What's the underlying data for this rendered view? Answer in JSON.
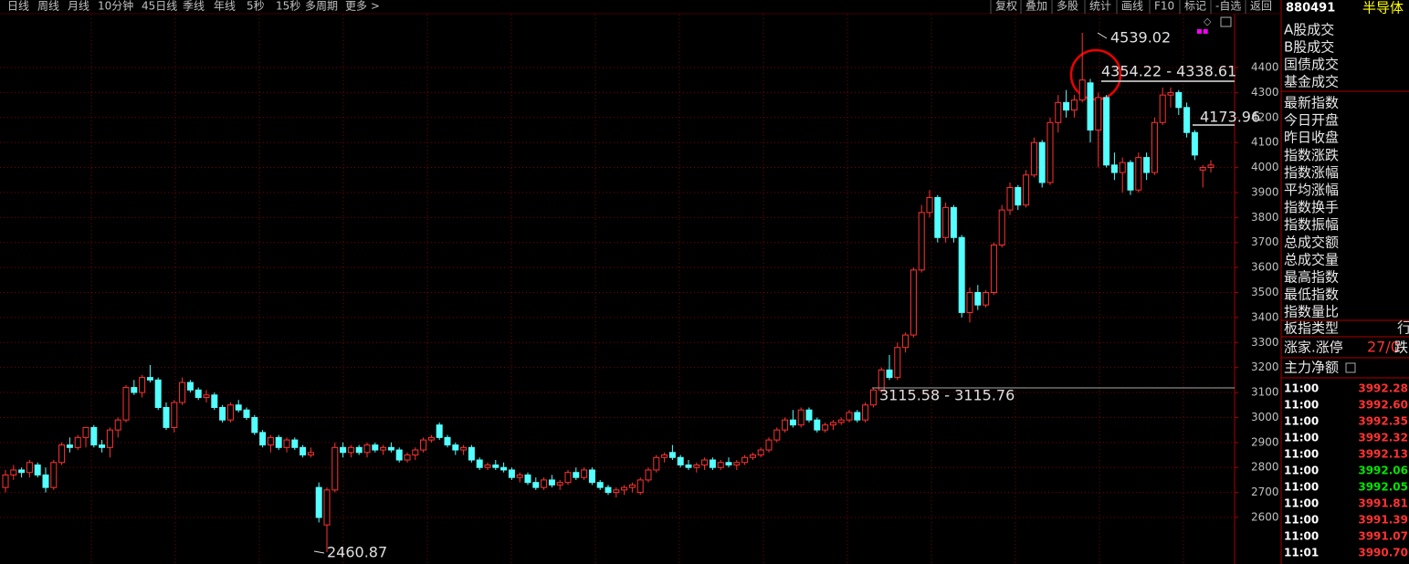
{
  "toolbar": {
    "left": [
      "日线",
      "周线",
      "月线",
      "10分钟",
      "45日线",
      "季线",
      "年线",
      "5秒",
      "15秒",
      "多周期",
      "更多 >"
    ],
    "right": [
      "复权",
      "叠加",
      "多股",
      "统计",
      "画线",
      "F10",
      "标记",
      "-自选",
      "返回"
    ]
  },
  "chart_data": {
    "type": "candlestick",
    "up_color": "#ff3232",
    "down_color": "#54ffff",
    "grid": true,
    "ylim": [
      2460,
      4560
    ],
    "yticks": [
      2600,
      2700,
      2800,
      2900,
      3000,
      3100,
      3200,
      3300,
      3400,
      3500,
      3600,
      3700,
      3800,
      3900,
      4000,
      4100,
      4200,
      4300,
      4400
    ],
    "annotations": [
      "4539.02",
      "4354.22 - 4338.61",
      "4173.96",
      "3115.58 - 3115.76",
      "2460.87"
    ],
    "ohlc": [
      [
        2720,
        2790,
        2700,
        2770
      ],
      [
        2770,
        2810,
        2750,
        2790
      ],
      [
        2790,
        2800,
        2760,
        2780
      ],
      [
        2780,
        2830,
        2760,
        2820
      ],
      [
        2810,
        2820,
        2760,
        2770
      ],
      [
        2770,
        2800,
        2700,
        2720
      ],
      [
        2720,
        2830,
        2710,
        2820
      ],
      [
        2820,
        2900,
        2810,
        2890
      ],
      [
        2890,
        2920,
        2860,
        2880
      ],
      [
        2880,
        2930,
        2870,
        2920
      ],
      [
        2920,
        2960,
        2880,
        2960
      ],
      [
        2960,
        2970,
        2880,
        2890
      ],
      [
        2890,
        2910,
        2860,
        2880
      ],
      [
        2880,
        2960,
        2840,
        2950
      ],
      [
        2950,
        3000,
        2920,
        2990
      ],
      [
        2990,
        3130,
        2980,
        3120
      ],
      [
        3120,
        3150,
        3090,
        3100
      ],
      [
        3100,
        3170,
        3080,
        3160
      ],
      [
        3160,
        3210,
        3140,
        3150
      ],
      [
        3150,
        3160,
        3030,
        3040
      ],
      [
        3040,
        3060,
        2950,
        2960
      ],
      [
        2960,
        3070,
        2940,
        3060
      ],
      [
        3060,
        3160,
        3050,
        3140
      ],
      [
        3140,
        3150,
        3100,
        3110
      ],
      [
        3110,
        3120,
        3070,
        3080
      ],
      [
        3080,
        3110,
        3060,
        3090
      ],
      [
        3090,
        3100,
        3030,
        3040
      ],
      [
        3040,
        3050,
        2980,
        2990
      ],
      [
        2990,
        3060,
        2980,
        3050
      ],
      [
        3050,
        3070,
        3020,
        3030
      ],
      [
        3030,
        3040,
        2990,
        3000
      ],
      [
        3000,
        3010,
        2930,
        2940
      ],
      [
        2940,
        2950,
        2880,
        2890
      ],
      [
        2890,
        2930,
        2860,
        2920
      ],
      [
        2920,
        2930,
        2870,
        2880
      ],
      [
        2880,
        2920,
        2860,
        2910
      ],
      [
        2910,
        2920,
        2870,
        2880
      ],
      [
        2880,
        2890,
        2840,
        2850
      ],
      [
        2850,
        2880,
        2840,
        2860
      ],
      [
        2720,
        2740,
        2580,
        2600
      ],
      [
        2570,
        2720,
        2460.87,
        2710
      ],
      [
        2710,
        2900,
        2700,
        2880
      ],
      [
        2880,
        2900,
        2840,
        2860
      ],
      [
        2860,
        2890,
        2840,
        2880
      ],
      [
        2880,
        2890,
        2850,
        2860
      ],
      [
        2860,
        2900,
        2840,
        2890
      ],
      [
        2890,
        2900,
        2860,
        2870
      ],
      [
        2870,
        2890,
        2850,
        2880
      ],
      [
        2880,
        2900,
        2860,
        2870
      ],
      [
        2870,
        2880,
        2820,
        2830
      ],
      [
        2830,
        2860,
        2820,
        2850
      ],
      [
        2850,
        2880,
        2830,
        2870
      ],
      [
        2870,
        2920,
        2860,
        2910
      ],
      [
        2910,
        2930,
        2900,
        2920
      ],
      [
        2970,
        2980,
        2910,
        2920
      ],
      [
        2920,
        2930,
        2880,
        2890
      ],
      [
        2890,
        2900,
        2850,
        2870
      ],
      [
        2870,
        2890,
        2850,
        2880
      ],
      [
        2880,
        2890,
        2820,
        2830
      ],
      [
        2830,
        2840,
        2790,
        2800
      ],
      [
        2800,
        2820,
        2790,
        2810
      ],
      [
        2810,
        2830,
        2790,
        2800
      ],
      [
        2800,
        2820,
        2780,
        2790
      ],
      [
        2790,
        2800,
        2750,
        2760
      ],
      [
        2760,
        2780,
        2740,
        2770
      ],
      [
        2770,
        2780,
        2730,
        2740
      ],
      [
        2740,
        2760,
        2710,
        2720
      ],
      [
        2720,
        2760,
        2710,
        2750
      ],
      [
        2750,
        2770,
        2720,
        2730
      ],
      [
        2730,
        2750,
        2710,
        2740
      ],
      [
        2740,
        2790,
        2730,
        2780
      ],
      [
        2780,
        2800,
        2750,
        2760
      ],
      [
        2760,
        2800,
        2750,
        2790
      ],
      [
        2790,
        2800,
        2730,
        2740
      ],
      [
        2740,
        2750,
        2710,
        2720
      ],
      [
        2720,
        2730,
        2690,
        2700
      ],
      [
        2700,
        2720,
        2680,
        2710
      ],
      [
        2710,
        2730,
        2690,
        2720
      ],
      [
        2720,
        2740,
        2700,
        2730
      ],
      [
        2700,
        2760,
        2690,
        2750
      ],
      [
        2750,
        2800,
        2740,
        2790
      ],
      [
        2790,
        2850,
        2780,
        2840
      ],
      [
        2840,
        2860,
        2820,
        2850
      ],
      [
        2860,
        2890,
        2830,
        2840
      ],
      [
        2840,
        2850,
        2800,
        2810
      ],
      [
        2810,
        2830,
        2790,
        2800
      ],
      [
        2800,
        2820,
        2780,
        2810
      ],
      [
        2810,
        2840,
        2790,
        2830
      ],
      [
        2830,
        2840,
        2790,
        2800
      ],
      [
        2800,
        2830,
        2790,
        2820
      ],
      [
        2820,
        2840,
        2800,
        2810
      ],
      [
        2810,
        2830,
        2790,
        2820
      ],
      [
        2820,
        2850,
        2810,
        2840
      ],
      [
        2840,
        2860,
        2830,
        2850
      ],
      [
        2850,
        2880,
        2840,
        2870
      ],
      [
        2870,
        2920,
        2860,
        2910
      ],
      [
        2910,
        2960,
        2900,
        2950
      ],
      [
        2950,
        3000,
        2940,
        2990
      ],
      [
        2990,
        3030,
        2960,
        2970
      ],
      [
        2970,
        3040,
        2960,
        3030
      ],
      [
        3030,
        3040,
        2980,
        2990
      ],
      [
        2990,
        3000,
        2940,
        2950
      ],
      [
        2950,
        2980,
        2940,
        2970
      ],
      [
        2970,
        2990,
        2950,
        2980
      ],
      [
        2980,
        3000,
        2970,
        2990
      ],
      [
        2990,
        3030,
        2980,
        3020
      ],
      [
        3020,
        3030,
        2980,
        2990
      ],
      [
        2990,
        3060,
        2980,
        3050
      ],
      [
        3050,
        3120,
        3040,
        3110
      ],
      [
        3110,
        3200,
        3100,
        3190
      ],
      [
        3190,
        3250,
        3150,
        3160
      ],
      [
        3160,
        3300,
        3150,
        3280
      ],
      [
        3280,
        3340,
        3260,
        3330
      ],
      [
        3330,
        3600,
        3320,
        3590
      ],
      [
        3590,
        3850,
        3580,
        3820
      ],
      [
        3820,
        3910,
        3800,
        3880
      ],
      [
        3880,
        3890,
        3700,
        3720
      ],
      [
        3720,
        3860,
        3700,
        3840
      ],
      [
        3840,
        3850,
        3700,
        3720
      ],
      [
        3720,
        3730,
        3400,
        3420
      ],
      [
        3420,
        3520,
        3380,
        3500
      ],
      [
        3500,
        3530,
        3430,
        3450
      ],
      [
        3450,
        3510,
        3440,
        3500
      ],
      [
        3500,
        3700,
        3490,
        3690
      ],
      [
        3690,
        3850,
        3680,
        3830
      ],
      [
        3830,
        3940,
        3810,
        3920
      ],
      [
        3920,
        3930,
        3830,
        3850
      ],
      [
        3850,
        3990,
        3840,
        3970
      ],
      [
        3970,
        4120,
        3960,
        4100
      ],
      [
        4100,
        4110,
        3920,
        3940
      ],
      [
        3940,
        4200,
        3930,
        4180
      ],
      [
        4180,
        4290,
        4140,
        4260
      ],
      [
        4260,
        4310,
        4200,
        4230
      ],
      [
        4230,
        4290,
        4200,
        4270
      ],
      [
        4270,
        4539.02,
        4260,
        4350
      ],
      [
        4338.61,
        4354.22,
        4100,
        4150
      ],
      [
        4150,
        4300,
        4000,
        4280
      ],
      [
        4280,
        4290,
        4000,
        4010
      ],
      [
        4010,
        4060,
        3950,
        3980
      ],
      [
        3980,
        4040,
        3900,
        4020
      ],
      [
        4020,
        4030,
        3890,
        3910
      ],
      [
        3910,
        4060,
        3900,
        4040
      ],
      [
        4040,
        4060,
        3950,
        3980
      ],
      [
        3980,
        4200,
        3970,
        4180
      ],
      [
        4180,
        4320,
        4170,
        4290
      ],
      [
        4290,
        4320,
        4240,
        4300
      ],
      [
        4300,
        4310,
        4210,
        4240
      ],
      [
        4240,
        4260,
        4120,
        4140
      ],
      [
        4140,
        4150,
        4030,
        4050
      ],
      [
        3990,
        4010,
        3920,
        4000
      ],
      [
        4000,
        4030,
        3980,
        4010
      ]
    ]
  },
  "panel": {
    "code": "880491",
    "name": "半导体",
    "fields": [
      "A股成交",
      "B股成交",
      "国债成交",
      "基金成交",
      "最新指数",
      "今日开盘",
      "昨日收盘",
      "指数涨跌",
      "指数涨幅",
      "平均涨幅",
      "指数换手",
      "指数振幅",
      "总成交额",
      "总成交量",
      "最高指数",
      "最低指数",
      "指数量比"
    ],
    "sector_type": {
      "label": "板指类型",
      "value": "行"
    },
    "advance": {
      "label": "涨家.涨停",
      "value": "27/0",
      "suffix": "跌"
    },
    "net_flow": "主力净额",
    "ticks": [
      {
        "time": "11:00",
        "value": "3992.28",
        "color": "#ff3232"
      },
      {
        "time": "11:00",
        "value": "3992.60",
        "color": "#ff3232"
      },
      {
        "time": "11:00",
        "value": "3992.35",
        "color": "#ff3232"
      },
      {
        "time": "11:00",
        "value": "3992.32",
        "color": "#ff3232"
      },
      {
        "time": "11:00",
        "value": "3992.13",
        "color": "#ff3232"
      },
      {
        "time": "11:00",
        "value": "3992.06",
        "color": "#00e600"
      },
      {
        "time": "11:00",
        "value": "3992.05",
        "color": "#00e600"
      },
      {
        "time": "11:00",
        "value": "3991.81",
        "color": "#ff3232"
      },
      {
        "time": "11:00",
        "value": "3991.39",
        "color": "#ff3232"
      },
      {
        "time": "11:00",
        "value": "3991.07",
        "color": "#ff3232"
      },
      {
        "time": "11:01",
        "value": "3990.70",
        "color": "#ff3232"
      }
    ]
  }
}
